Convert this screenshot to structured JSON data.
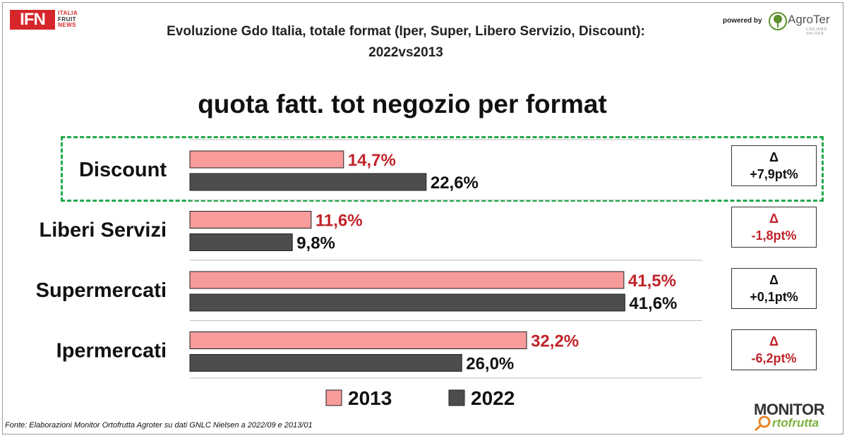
{
  "header": {
    "logo_left": {
      "main": "IFN",
      "lines": [
        "ITALIA",
        "FRUIT",
        "NEWS"
      ]
    },
    "title_line1": "Evoluzione Gdo Italia, totale format (Iper, Super, Libero Servizio, Discount):",
    "title_line2": "2022vs2013",
    "powered_by": "powered by",
    "logo_right": {
      "name": "AgroTer",
      "tagline": "CREIAMO VALORE"
    }
  },
  "subtitle": "quota fatt. tot negozio per format",
  "chart_data": {
    "type": "bar",
    "orientation": "horizontal",
    "categories": [
      "Discount",
      "Liberi Servizi",
      "Supermercati",
      "Ipermercati"
    ],
    "series": [
      {
        "name": "2013",
        "values": [
          14.7,
          11.6,
          41.5,
          32.2
        ],
        "labels": [
          "14,7%",
          "11,6%",
          "41,5%",
          "32,2%"
        ],
        "color": "#f79b9b",
        "label_color": "#c0242b"
      },
      {
        "name": "2022",
        "values": [
          22.6,
          9.8,
          41.6,
          26.0
        ],
        "labels": [
          "22,6%",
          "9,8%",
          "41,6%",
          "26,0%"
        ],
        "color": "#4d4d4d",
        "label_color": "#111111"
      }
    ],
    "xlim": [
      0,
      49
    ],
    "grid": false,
    "legend": "bottom"
  },
  "deltas": [
    {
      "symbol": "Δ",
      "value": "+7,9pt%",
      "color": "#111111"
    },
    {
      "symbol": "Δ",
      "value": "-1,8pt%",
      "color": "#c0242b"
    },
    {
      "symbol": "Δ",
      "value": "+0,1pt%",
      "color": "#111111"
    },
    {
      "symbol": "Δ",
      "value": "-6,2pt%",
      "color": "#c0242b"
    }
  ],
  "colors": {
    "highlight_border": "#22a84a"
  },
  "source": "Fonte: Elaborazioni Monitor Ortofrutta Agroter su dati GNLC Nielsen a 2022/09 e 2013/01",
  "logo_bottom": {
    "line1": "MONITOR",
    "line2": "rtofrutta"
  }
}
